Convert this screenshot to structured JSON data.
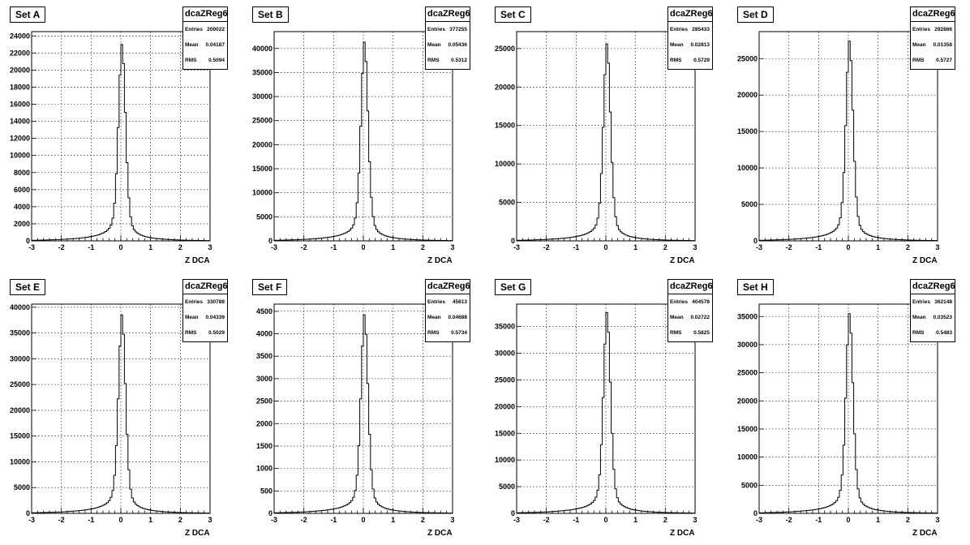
{
  "chart_data": [
    {
      "type": "histogram",
      "set_label": "Set A",
      "histogram_name": "dcaZReg6",
      "stats": [
        {
          "label": "Entries",
          "value": "200022"
        },
        {
          "label": "Mean",
          "value": "0.04187"
        },
        {
          "label": "RMS",
          "value": "0.5094"
        }
      ],
      "xlabel": "Z DCA",
      "xlim": [
        -3,
        3
      ],
      "xticks": [
        "-3",
        "-2",
        "-1",
        "0",
        "1",
        "2",
        "3"
      ],
      "ylim": [
        0,
        24500
      ],
      "yticks": [
        "0",
        "2000",
        "4000",
        "6000",
        "8000",
        "10000",
        "12000",
        "14000",
        "16000",
        "18000",
        "20000",
        "22000",
        "24000"
      ],
      "ytick_values": [
        0,
        2000,
        4000,
        6000,
        8000,
        10000,
        12000,
        14000,
        16000,
        18000,
        20000,
        22000,
        24000
      ],
      "peak": 23000,
      "grid": true
    },
    {
      "type": "histogram",
      "set_label": "Set B",
      "histogram_name": "dcaZReg6",
      "stats": [
        {
          "label": "Entries",
          "value": "377255"
        },
        {
          "label": "Mean",
          "value": "0.05436"
        },
        {
          "label": "RMS",
          "value": "0.5312"
        }
      ],
      "xlabel": "Z DCA",
      "xlim": [
        -3,
        3
      ],
      "xticks": [
        "-3",
        "-2",
        "-1",
        "0",
        "1",
        "2",
        "3"
      ],
      "ylim": [
        0,
        43500
      ],
      "yticks": [
        "0",
        "5000",
        "10000",
        "15000",
        "20000",
        "25000",
        "30000",
        "35000",
        "40000"
      ],
      "ytick_values": [
        0,
        5000,
        10000,
        15000,
        20000,
        25000,
        30000,
        35000,
        40000
      ],
      "peak": 41300,
      "grid": true
    },
    {
      "type": "histogram",
      "set_label": "Set C",
      "histogram_name": "dcaZReg6",
      "stats": [
        {
          "label": "Entries",
          "value": "285433"
        },
        {
          "label": "Mean",
          "value": "0.02813"
        },
        {
          "label": "RMS",
          "value": "0.5729"
        }
      ],
      "xlabel": "Z DCA",
      "xlim": [
        -3,
        3
      ],
      "xticks": [
        "-3",
        "-2",
        "-1",
        "0",
        "1",
        "2",
        "3"
      ],
      "ylim": [
        0,
        27200
      ],
      "yticks": [
        "0",
        "5000",
        "10000",
        "15000",
        "20000",
        "25000"
      ],
      "ytick_values": [
        0,
        5000,
        10000,
        15000,
        20000,
        25000
      ],
      "peak": 25600,
      "grid": true
    },
    {
      "type": "histogram",
      "set_label": "Set D",
      "histogram_name": "dcaZReg6",
      "stats": [
        {
          "label": "Entries",
          "value": "292866"
        },
        {
          "label": "Mean",
          "value": "0.01358"
        },
        {
          "label": "RMS",
          "value": "0.5727"
        }
      ],
      "xlabel": "Z DCA",
      "xlim": [
        -3,
        3
      ],
      "xticks": [
        "-3",
        "-2",
        "-1",
        "0",
        "1",
        "2",
        "3"
      ],
      "ylim": [
        0,
        28700
      ],
      "yticks": [
        "0",
        "5000",
        "10000",
        "15000",
        "20000",
        "25000"
      ],
      "ytick_values": [
        0,
        5000,
        10000,
        15000,
        20000,
        25000
      ],
      "peak": 27400,
      "grid": true
    },
    {
      "type": "histogram",
      "set_label": "Set E",
      "histogram_name": "dcaZReg6",
      "stats": [
        {
          "label": "Entries",
          "value": "330788"
        },
        {
          "label": "Mean",
          "value": "0.04339"
        },
        {
          "label": "RMS",
          "value": "0.5029"
        }
      ],
      "xlabel": "Z DCA",
      "xlim": [
        -3,
        3
      ],
      "xticks": [
        "-3",
        "-2",
        "-1",
        "0",
        "1",
        "2",
        "3"
      ],
      "ylim": [
        0,
        40600
      ],
      "yticks": [
        "0",
        "5000",
        "10000",
        "15000",
        "20000",
        "25000",
        "30000",
        "35000",
        "40000"
      ],
      "ytick_values": [
        0,
        5000,
        10000,
        15000,
        20000,
        25000,
        30000,
        35000,
        40000
      ],
      "peak": 38500,
      "grid": true
    },
    {
      "type": "histogram",
      "set_label": "Set F",
      "histogram_name": "dcaZReg6",
      "stats": [
        {
          "label": "Entries",
          "value": "45613"
        },
        {
          "label": "Mean",
          "value": "0.04688"
        },
        {
          "label": "RMS",
          "value": "0.5734"
        }
      ],
      "xlabel": "Z DCA",
      "xlim": [
        -3,
        3
      ],
      "xticks": [
        "-3",
        "-2",
        "-1",
        "0",
        "1",
        "2",
        "3"
      ],
      "ylim": [
        0,
        4660
      ],
      "yticks": [
        "0",
        "500",
        "1000",
        "1500",
        "2000",
        "2500",
        "3000",
        "3500",
        "4000",
        "4500"
      ],
      "ytick_values": [
        0,
        500,
        1000,
        1500,
        2000,
        2500,
        3000,
        3500,
        4000,
        4500
      ],
      "peak": 4420,
      "grid": true
    },
    {
      "type": "histogram",
      "set_label": "Set G",
      "histogram_name": "dcaZReg6",
      "stats": [
        {
          "label": "Entries",
          "value": "404578"
        },
        {
          "label": "Mean",
          "value": "0.02722"
        },
        {
          "label": "RMS",
          "value": "0.5825"
        }
      ],
      "xlabel": "Z DCA",
      "xlim": [
        -3,
        3
      ],
      "xticks": [
        "-3",
        "-2",
        "-1",
        "0",
        "1",
        "2",
        "3"
      ],
      "ylim": [
        0,
        39200
      ],
      "yticks": [
        "0",
        "5000",
        "10000",
        "15000",
        "20000",
        "25000",
        "30000",
        "35000"
      ],
      "ytick_values": [
        0,
        5000,
        10000,
        15000,
        20000,
        25000,
        30000,
        35000
      ],
      "peak": 37600,
      "grid": true
    },
    {
      "type": "histogram",
      "set_label": "Set H",
      "histogram_name": "dcaZReg6",
      "stats": [
        {
          "label": "Entries",
          "value": "362148"
        },
        {
          "label": "Mean",
          "value": "0.03523"
        },
        {
          "label": "RMS",
          "value": "0.5483"
        }
      ],
      "xlabel": "Z DCA",
      "xlim": [
        -3,
        3
      ],
      "xticks": [
        "-3",
        "-2",
        "-1",
        "0",
        "1",
        "2",
        "3"
      ],
      "ylim": [
        0,
        37200
      ],
      "yticks": [
        "0",
        "5000",
        "10000",
        "15000",
        "20000",
        "25000",
        "30000",
        "35000"
      ],
      "ytick_values": [
        0,
        5000,
        10000,
        15000,
        20000,
        25000,
        30000,
        35000
      ],
      "peak": 35500,
      "grid": true
    }
  ]
}
